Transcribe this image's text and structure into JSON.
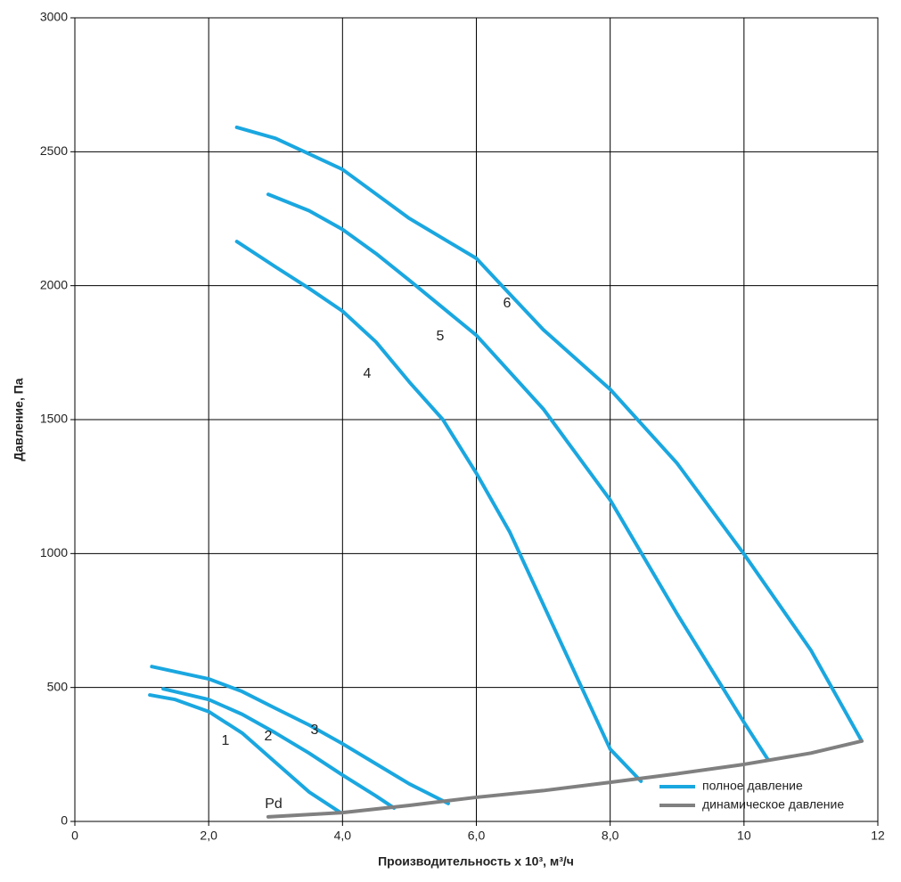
{
  "chart_data": {
    "type": "line",
    "x_label": "Производительность x 10³, м³/ч",
    "y_label": "Давление, Па",
    "xlim": [
      0,
      12
    ],
    "ylim": [
      0,
      3000
    ],
    "xticks": [
      0,
      {
        "value": 2,
        "label": "2,0"
      },
      {
        "value": 4,
        "label": "4,0"
      },
      {
        "value": 6,
        "label": "6,0"
      },
      {
        "value": 8,
        "label": "8,0"
      },
      10,
      12
    ],
    "yticks": [
      0,
      500,
      1000,
      1500,
      2000,
      2500,
      3000
    ],
    "grid": true,
    "series": [
      {
        "name": "1",
        "color": "#1aa7e0",
        "x": [
          1.12,
          1.5,
          2,
          2.5,
          3,
          3.5,
          3.97
        ],
        "values": [
          472,
          455,
          410,
          330,
          220,
          110,
          33
        ]
      },
      {
        "name": "2",
        "color": "#1aa7e0",
        "x": [
          1.32,
          2,
          2.5,
          3,
          3.5,
          4,
          4.5,
          4.77
        ],
        "values": [
          495,
          455,
          400,
          330,
          255,
          173,
          95,
          50
        ]
      },
      {
        "name": "3",
        "color": "#1aa7e0",
        "x": [
          1.15,
          2,
          2.5,
          3,
          3.5,
          4,
          4.5,
          5,
          5.58
        ],
        "values": [
          578,
          532,
          485,
          422,
          360,
          290,
          215,
          140,
          67
        ]
      },
      {
        "name": "4",
        "color": "#1aa7e0",
        "x": [
          2.42,
          3,
          3.5,
          4,
          4.5,
          5,
          5.5,
          6,
          6.5,
          7,
          7.5,
          8,
          8.46
        ],
        "values": [
          2165,
          2070,
          1990,
          1905,
          1790,
          1640,
          1500,
          1300,
          1080,
          810,
          540,
          270,
          150
        ]
      },
      {
        "name": "5",
        "color": "#1aa7e0",
        "x": [
          2.89,
          3.5,
          4,
          4.5,
          5,
          6,
          7,
          8,
          9,
          10,
          10.36
        ],
        "values": [
          2341,
          2280,
          2210,
          2120,
          2020,
          1815,
          1540,
          1200,
          775,
          370,
          230
        ]
      },
      {
        "name": "6",
        "color": "#1aa7e0",
        "x": [
          2.42,
          3,
          4,
          5,
          6,
          6.4,
          7,
          8,
          9,
          10,
          11,
          11.76
        ],
        "values": [
          2591,
          2550,
          2434,
          2251,
          2102,
          1995,
          1836,
          1613,
          1337,
          998,
          639,
          300
        ]
      },
      {
        "name": "Pd",
        "color": "#808080",
        "x": [
          2.89,
          4,
          5,
          6,
          7,
          8,
          9,
          10,
          11,
          11.76
        ],
        "values": [
          17,
          33,
          60,
          90,
          115,
          146,
          178,
          213,
          255,
          300
        ]
      }
    ],
    "legend": {
      "position": "lower right",
      "entries": [
        {
          "label": "полное давление",
          "color": "#1aa7e0"
        },
        {
          "label": "динамическое давление",
          "color": "#808080"
        }
      ]
    }
  }
}
